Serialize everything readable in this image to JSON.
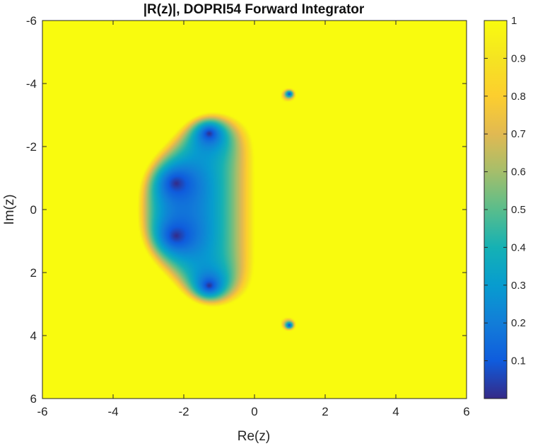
{
  "chart_data": {
    "type": "heatmap",
    "title": "|R(z)|, DOPRI54 Forward Integrator",
    "xlabel": "Re(z)",
    "ylabel": "Im(z)",
    "xlim": [
      -6,
      6
    ],
    "ylim": [
      -6,
      6
    ],
    "y_direction": "reversed",
    "x_ticks": [
      "-6",
      "-4",
      "-2",
      "0",
      "2",
      "4",
      "6"
    ],
    "y_ticks": [
      "-6",
      "-4",
      "-2",
      "0",
      "2",
      "4",
      "6"
    ],
    "x_tick_values": [
      -6,
      -4,
      -2,
      0,
      2,
      4,
      6
    ],
    "y_tick_values": [
      -6,
      -4,
      -2,
      0,
      2,
      4,
      6
    ],
    "colorbar": {
      "colormap": "parula",
      "range": [
        0,
        1
      ],
      "ticks": [
        "0.1",
        "0.2",
        "0.3",
        "0.4",
        "0.5",
        "0.6",
        "0.7",
        "0.8",
        "0.9",
        "1"
      ],
      "tick_values": [
        0.1,
        0.2,
        0.3,
        0.4,
        0.5,
        0.6,
        0.7,
        0.8,
        0.9,
        1.0
      ]
    },
    "value_clipping": "values of |R(z)| above 1 shown at the colormap maximum",
    "grid": false,
    "features": [
      {
        "name": "stability region",
        "extent_re": [
          -4.2,
          -0.2
        ],
        "extent_im": [
          -3.1,
          3.1
        ]
      },
      {
        "name": "zero",
        "re": -3.0,
        "im": -0.45,
        "value": 0.0
      },
      {
        "name": "zero",
        "re": -3.0,
        "im": 0.45,
        "value": 0.0
      },
      {
        "name": "zero",
        "re": -1.6,
        "im": -2.25,
        "value": 0.0
      },
      {
        "name": "zero",
        "re": -1.6,
        "im": 2.25,
        "value": 0.0
      },
      {
        "name": "zero",
        "re": 0.82,
        "im": -3.65,
        "value": 0.0
      },
      {
        "name": "zero",
        "re": 0.82,
        "im": 3.65,
        "value": 0.0
      }
    ]
  }
}
